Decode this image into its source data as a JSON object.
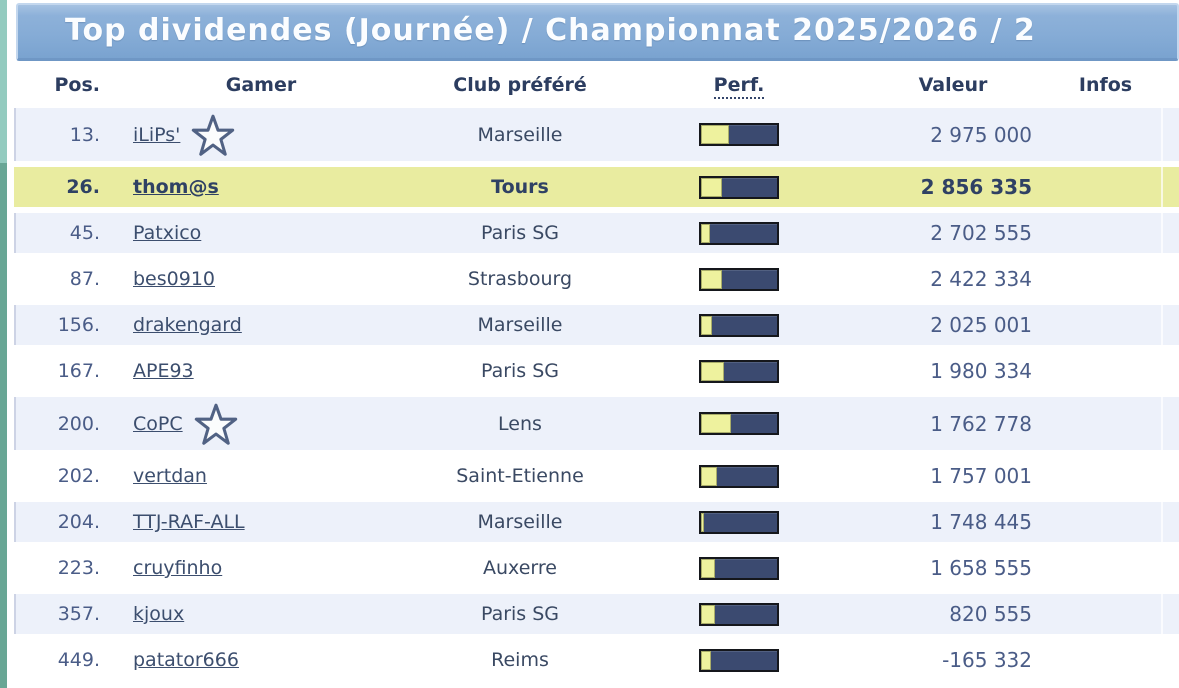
{
  "header": {
    "title": "Top dividendes (Journée) / Championnat 2025/2026 / 2"
  },
  "table": {
    "columns": {
      "pos": "Pos.",
      "gamer": "Gamer",
      "club": "Club préféré",
      "perf": "Perf.",
      "valeur": "Valeur",
      "infos": "Infos"
    },
    "rows": [
      {
        "pos": "13.",
        "gamer": "iLiPs'",
        "star": true,
        "club": "Marseille",
        "perf_pct": 37,
        "valeur": "2 975 000",
        "highlight": false
      },
      {
        "pos": "26.",
        "gamer": "thom@s",
        "star": false,
        "club": "Tours",
        "perf_pct": 27,
        "valeur": "2 856 335",
        "highlight": true
      },
      {
        "pos": "45.",
        "gamer": "Patxico",
        "star": false,
        "club": "Paris SG",
        "perf_pct": 12,
        "valeur": "2 702 555",
        "highlight": false
      },
      {
        "pos": "87.",
        "gamer": "bes0910",
        "star": false,
        "club": "Strasbourg",
        "perf_pct": 28,
        "valeur": "2 422 334",
        "highlight": false
      },
      {
        "pos": "156.",
        "gamer": "drakengard",
        "star": false,
        "club": "Marseille",
        "perf_pct": 15,
        "valeur": "2 025 001",
        "highlight": false
      },
      {
        "pos": "167.",
        "gamer": "APE93",
        "star": false,
        "club": "Paris SG",
        "perf_pct": 30,
        "valeur": "1 980 334",
        "highlight": false
      },
      {
        "pos": "200.",
        "gamer": "CoPC",
        "star": true,
        "club": "Lens",
        "perf_pct": 40,
        "valeur": "1 762 778",
        "highlight": false
      },
      {
        "pos": "202.",
        "gamer": "vertdan",
        "star": false,
        "club": "Saint-Etienne",
        "perf_pct": 21,
        "valeur": "1 757 001",
        "highlight": false
      },
      {
        "pos": "204.",
        "gamer": "TTJ-RAF-ALL",
        "star": false,
        "club": "Marseille",
        "perf_pct": 4,
        "valeur": "1 748 445",
        "highlight": false
      },
      {
        "pos": "223.",
        "gamer": "cruyfinho",
        "star": false,
        "club": "Auxerre",
        "perf_pct": 18,
        "valeur": "1 658 555",
        "highlight": false
      },
      {
        "pos": "357.",
        "gamer": "kjoux",
        "star": false,
        "club": "Paris SG",
        "perf_pct": 18,
        "valeur": "820 555",
        "highlight": false
      },
      {
        "pos": "449.",
        "gamer": "patator666",
        "star": false,
        "club": "Reims",
        "perf_pct": 13,
        "valeur": "-165 332",
        "highlight": false
      }
    ]
  },
  "icons": {
    "star": "star-icon"
  },
  "colors": {
    "strip_top": "#93cbbf",
    "strip_bottom": "#68a695",
    "title_bar_blue": "#86acd6",
    "row_alt": "#edf1fa",
    "row_highlight": "#e9eca0",
    "bar_navy": "#3b4a70",
    "bar_yellow": "#eef29e",
    "text_navy": "#2c3d60",
    "link_color": "#3c4e6e"
  }
}
